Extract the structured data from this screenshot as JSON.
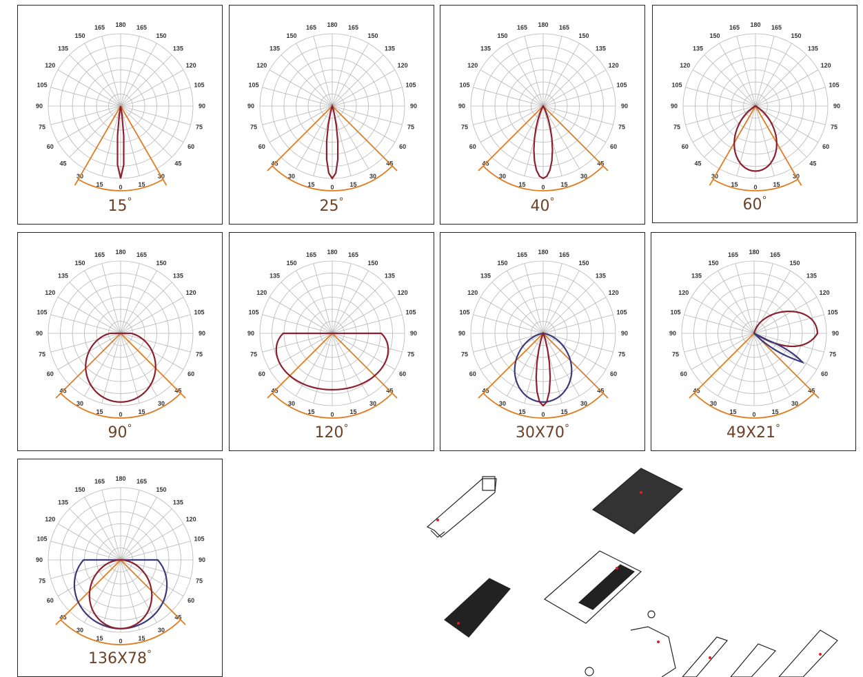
{
  "angle_labels": [
    "0",
    "15",
    "30",
    "45",
    "60",
    "75",
    "90",
    "105",
    "120",
    "135",
    "150",
    "165",
    "180"
  ],
  "colors": {
    "frame": "#222222",
    "grid": "#b5b5b5",
    "label": "#333333",
    "beam": "#e07b1f",
    "curve_red": "#8b1f2f",
    "curve_blue": "#3a3a7a",
    "caption": "#6b4226"
  },
  "degree_symbol": "°",
  "panels": [
    {
      "caption": "15",
      "beam_half_angle": 30,
      "curves": [
        {
          "color": "red",
          "shape": "narrow",
          "width": 7.5
        }
      ]
    },
    {
      "caption": "25",
      "beam_half_angle": 45,
      "curves": [
        {
          "color": "red",
          "shape": "narrow",
          "width": 12.5
        }
      ]
    },
    {
      "caption": "40",
      "beam_half_angle": 45,
      "curves": [
        {
          "color": "red",
          "shape": "narrow",
          "width": 20
        }
      ]
    },
    {
      "caption": "60",
      "beam_half_angle": 30,
      "curves": [
        {
          "color": "red",
          "shape": "flat",
          "width": 30
        }
      ]
    },
    {
      "caption": "90",
      "beam_half_angle": 45,
      "curves": [
        {
          "color": "red",
          "shape": "wide",
          "width": 45
        }
      ]
    },
    {
      "caption": "120",
      "beam_half_angle": 45,
      "curves": [
        {
          "color": "red",
          "shape": "bat",
          "width": 60
        }
      ]
    },
    {
      "caption": "30X70",
      "beam_half_angle": 45,
      "curves": [
        {
          "color": "blue",
          "shape": "wide",
          "width": 35
        },
        {
          "color": "red",
          "shape": "narrow",
          "width": 15
        }
      ]
    },
    {
      "caption": "49X21",
      "beam_half_angle": 45,
      "curves": [
        {
          "color": "red",
          "shape": "tilt",
          "width": 49
        },
        {
          "color": "blue",
          "shape": "tilt2",
          "width": 21
        }
      ]
    },
    {
      "caption": "136X78",
      "beam_half_angle": 45,
      "curves": [
        {
          "color": "blue",
          "shape": "wide",
          "width": 68
        },
        {
          "color": "red",
          "shape": "wide",
          "width": 39
        }
      ]
    }
  ]
}
